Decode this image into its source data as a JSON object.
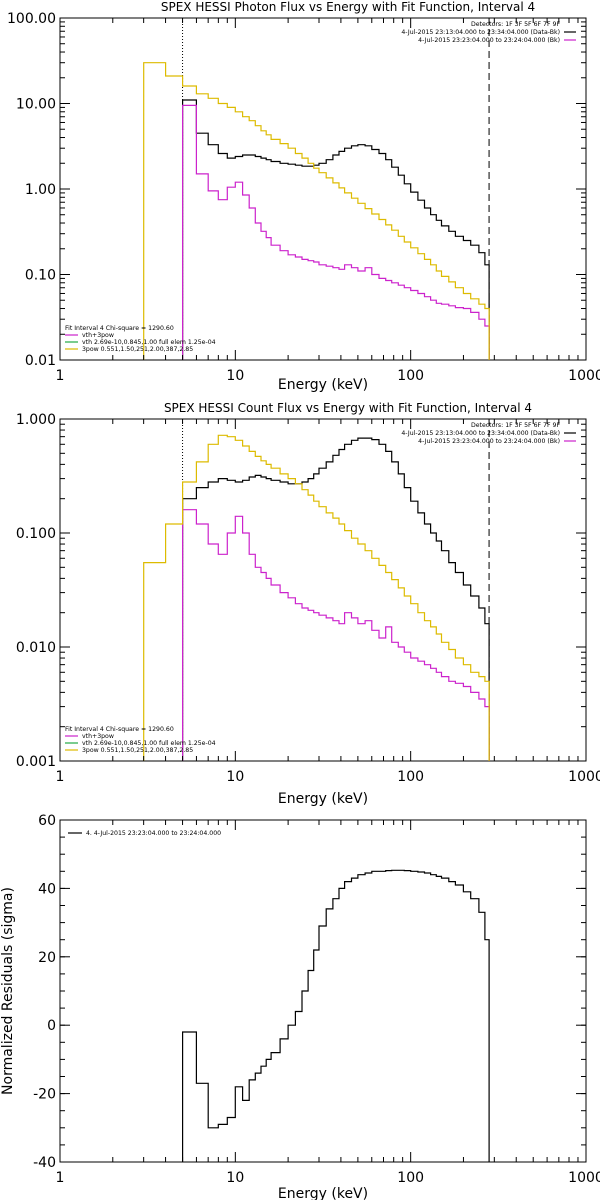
{
  "chart_data": [
    {
      "type": "line",
      "title": "SPEX HESSI Photon Flux vs Energy with Fit Function, Interval 4",
      "xlabel": "Energy (keV)",
      "ylabel": "",
      "xscale": "log",
      "yscale": "log",
      "xlim": [
        1,
        1000
      ],
      "ylim": [
        0.01,
        100
      ],
      "xtick_labels": [
        "1",
        "10",
        "100",
        "1000"
      ],
      "ytick_labels": [
        "0.01",
        "0.10",
        "1.00",
        "10.00",
        "100.00"
      ],
      "grid": false,
      "legend_top": [
        "Detectors: 1F 3F 5F 6F 7F 9F",
        "4-Jul-2015 23:13:04.000 to 23:34:04.000 (Data-Bk)",
        "4-Jul-2015 23:23:04.000 to 23:24:04.000 (Bk)"
      ],
      "legend_bottom": [
        "Fit Interval 4    Chi-square = 1290.60",
        "vth+3pow",
        "vth 2.69e-10,0.845,1.00  full elem 1.25e-04",
        "3pow 0.551,1.50,251,2.00,387,2.85"
      ],
      "vlines": [
        {
          "x": 5.0,
          "style": "dotted"
        },
        {
          "x": 280,
          "style": "dashed"
        }
      ],
      "series": [
        {
          "name": "Data-Bk",
          "color": "#000000",
          "x": [
            5.0,
            6,
            7,
            8,
            9,
            10,
            11,
            12,
            13,
            14,
            15,
            16,
            18,
            20,
            22,
            24,
            26,
            28,
            30,
            33,
            36,
            39,
            42,
            46,
            50,
            55,
            60,
            66,
            72,
            78,
            85,
            92,
            100,
            110,
            120,
            130,
            140,
            150,
            165,
            180,
            200,
            220,
            245,
            265,
            280
          ],
          "y": [
            11.0,
            4.5,
            3.3,
            2.6,
            2.3,
            2.4,
            2.5,
            2.5,
            2.4,
            2.3,
            2.2,
            2.1,
            2.0,
            1.95,
            1.9,
            1.85,
            1.85,
            1.9,
            2.0,
            2.2,
            2.5,
            2.75,
            3.0,
            3.2,
            3.3,
            3.2,
            2.9,
            2.6,
            2.2,
            1.8,
            1.45,
            1.15,
            0.92,
            0.74,
            0.6,
            0.5,
            0.43,
            0.37,
            0.32,
            0.28,
            0.25,
            0.22,
            0.18,
            0.13,
            0.13
          ]
        },
        {
          "name": "Bk",
          "color": "#cc22cc",
          "x": [
            5.0,
            6,
            7,
            8,
            9,
            10,
            11,
            12,
            13,
            14,
            15,
            16,
            18,
            20,
            22,
            24,
            26,
            28,
            30,
            33,
            36,
            39,
            42,
            46,
            50,
            55,
            60,
            66,
            72,
            78,
            85,
            92,
            100,
            110,
            120,
            130,
            140,
            150,
            165,
            180,
            200,
            220,
            245,
            265,
            280
          ],
          "y": [
            9.5,
            1.5,
            0.95,
            0.75,
            1.05,
            1.2,
            0.85,
            0.6,
            0.4,
            0.32,
            0.27,
            0.22,
            0.19,
            0.17,
            0.16,
            0.15,
            0.145,
            0.14,
            0.13,
            0.125,
            0.12,
            0.115,
            0.13,
            0.12,
            0.11,
            0.12,
            0.1,
            0.09,
            0.085,
            0.08,
            0.075,
            0.07,
            0.065,
            0.06,
            0.055,
            0.05,
            0.046,
            0.045,
            0.043,
            0.041,
            0.04,
            0.036,
            0.03,
            0.025,
            0.022
          ]
        },
        {
          "name": "Fit",
          "color": "#ddbb00",
          "x": [
            3.0,
            4.0,
            5.0,
            6,
            7,
            8,
            9,
            10,
            11,
            12,
            13,
            14,
            15,
            16,
            18,
            20,
            22,
            24,
            26,
            28,
            30,
            33,
            36,
            39,
            42,
            46,
            50,
            55,
            60,
            66,
            72,
            78,
            85,
            92,
            100,
            110,
            120,
            130,
            140,
            150,
            165,
            180,
            200,
            220,
            245,
            265,
            280
          ],
          "y": [
            30,
            21,
            16,
            13,
            11.5,
            10,
            9,
            8,
            7,
            6.3,
            5.5,
            4.8,
            4.3,
            3.8,
            3.4,
            3.0,
            2.6,
            2.3,
            2.0,
            1.75,
            1.55,
            1.35,
            1.18,
            1.03,
            0.9,
            0.78,
            0.68,
            0.59,
            0.51,
            0.44,
            0.38,
            0.33,
            0.28,
            0.24,
            0.205,
            0.175,
            0.15,
            0.13,
            0.11,
            0.095,
            0.082,
            0.07,
            0.06,
            0.052,
            0.045,
            0.04,
            0.04
          ]
        }
      ]
    },
    {
      "type": "line",
      "title": "SPEX HESSI Count Flux vs Energy with Fit Function, Interval 4",
      "xlabel": "Energy (keV)",
      "ylabel": "",
      "xscale": "log",
      "yscale": "log",
      "xlim": [
        1,
        1000
      ],
      "ylim": [
        0.001,
        1
      ],
      "xtick_labels": [
        "1",
        "10",
        "100",
        "1000"
      ],
      "ytick_labels": [
        "0.001",
        "0.010",
        "0.100",
        "1.000"
      ],
      "grid": false,
      "legend_top": [
        "Detectors: 1F 3F 5F 6F 7F 9F",
        "4-Jul-2015 23:13:04.000 to 23:34:04.000 (Data-Bk)",
        "4-Jul-2015 23:23:04.000 to 23:24:04.000 (Bk)"
      ],
      "legend_bottom": [
        "Fit Interval 4    Chi-square = 1290.60",
        "vth+3pow",
        "vth 2.69e-10,0.845,1.00  full elem 1.25e-04",
        "3pow 0.551,1.50,251,2.00,387,2.85"
      ],
      "vlines": [
        {
          "x": 5.0,
          "style": "dotted"
        },
        {
          "x": 280,
          "style": "dashed"
        }
      ],
      "series": [
        {
          "name": "Data-Bk",
          "color": "#000000",
          "x": [
            5.0,
            6,
            7,
            8,
            9,
            10,
            11,
            12,
            13,
            14,
            15,
            16,
            18,
            20,
            22,
            24,
            26,
            28,
            30,
            33,
            36,
            39,
            42,
            46,
            50,
            55,
            60,
            66,
            72,
            78,
            85,
            92,
            100,
            110,
            120,
            130,
            140,
            150,
            165,
            180,
            200,
            220,
            245,
            265,
            280
          ],
          "y": [
            0.2,
            0.25,
            0.28,
            0.3,
            0.29,
            0.28,
            0.29,
            0.31,
            0.32,
            0.31,
            0.3,
            0.29,
            0.28,
            0.27,
            0.27,
            0.28,
            0.3,
            0.33,
            0.37,
            0.42,
            0.48,
            0.54,
            0.6,
            0.65,
            0.68,
            0.68,
            0.66,
            0.6,
            0.52,
            0.42,
            0.33,
            0.25,
            0.19,
            0.15,
            0.12,
            0.1,
            0.085,
            0.07,
            0.055,
            0.045,
            0.035,
            0.028,
            0.022,
            0.016,
            0.016
          ]
        },
        {
          "name": "Bk",
          "color": "#cc22cc",
          "x": [
            5.0,
            6,
            7,
            8,
            9,
            10,
            11,
            12,
            13,
            14,
            15,
            16,
            18,
            20,
            22,
            24,
            26,
            28,
            30,
            33,
            36,
            39,
            42,
            46,
            50,
            55,
            60,
            66,
            72,
            78,
            85,
            92,
            100,
            110,
            120,
            130,
            140,
            150,
            165,
            180,
            200,
            220,
            245,
            265,
            280
          ],
          "y": [
            0.16,
            0.12,
            0.08,
            0.065,
            0.1,
            0.14,
            0.1,
            0.065,
            0.05,
            0.045,
            0.04,
            0.035,
            0.03,
            0.027,
            0.024,
            0.022,
            0.021,
            0.02,
            0.019,
            0.018,
            0.017,
            0.016,
            0.02,
            0.018,
            0.016,
            0.017,
            0.014,
            0.012,
            0.015,
            0.011,
            0.01,
            0.009,
            0.008,
            0.0075,
            0.007,
            0.0065,
            0.006,
            0.0055,
            0.005,
            0.0048,
            0.0045,
            0.004,
            0.0035,
            0.003,
            0.0028
          ]
        },
        {
          "name": "Fit",
          "color": "#ddbb00",
          "x": [
            3.0,
            4.0,
            5.0,
            6,
            7,
            8,
            9,
            10,
            11,
            12,
            13,
            14,
            15,
            16,
            18,
            20,
            22,
            24,
            26,
            28,
            30,
            33,
            36,
            39,
            42,
            46,
            50,
            55,
            60,
            66,
            72,
            78,
            85,
            92,
            100,
            110,
            120,
            130,
            140,
            150,
            165,
            180,
            200,
            220,
            245,
            265,
            280
          ],
          "y": [
            0.055,
            0.12,
            0.28,
            0.42,
            0.6,
            0.72,
            0.7,
            0.65,
            0.58,
            0.52,
            0.47,
            0.43,
            0.4,
            0.37,
            0.33,
            0.3,
            0.27,
            0.24,
            0.215,
            0.19,
            0.17,
            0.15,
            0.135,
            0.12,
            0.105,
            0.09,
            0.08,
            0.07,
            0.06,
            0.052,
            0.045,
            0.039,
            0.033,
            0.028,
            0.024,
            0.02,
            0.017,
            0.015,
            0.013,
            0.011,
            0.0095,
            0.008,
            0.007,
            0.006,
            0.0055,
            0.005,
            0.005
          ]
        }
      ]
    },
    {
      "type": "line",
      "title": "",
      "xlabel": "Energy (keV)",
      "ylabel": "Normalized Residuals (sigma)",
      "xscale": "log",
      "yscale": "linear",
      "xlim": [
        1,
        1000
      ],
      "ylim": [
        -40,
        60
      ],
      "xtick_labels": [
        "1",
        "10",
        "100",
        "1000"
      ],
      "ytick_labels": [
        "-40",
        "-20",
        "0",
        "20",
        "40",
        "60"
      ],
      "grid": false,
      "legend": [
        "4.  4-Jul-2015 23:23:04.000 to 23:24:04.000"
      ],
      "series": [
        {
          "name": "4.  4-Jul-2015 23:23:04.000 to 23:24:04.000",
          "color": "#000000",
          "x": [
            5.0,
            6,
            7,
            8,
            9,
            10,
            11,
            12,
            13,
            14,
            15,
            16,
            18,
            20,
            22,
            24,
            26,
            28,
            30,
            33,
            36,
            39,
            42,
            46,
            50,
            55,
            60,
            66,
            72,
            78,
            85,
            92,
            100,
            110,
            120,
            130,
            140,
            150,
            165,
            180,
            200,
            220,
            245,
            265,
            280
          ],
          "y": [
            -2,
            -17,
            -30,
            -29,
            -27,
            -18,
            -22,
            -16,
            -14,
            -12,
            -10,
            -8,
            -4,
            0,
            4,
            10,
            16,
            22,
            29,
            34,
            37,
            40,
            42,
            43,
            44,
            44.5,
            45,
            45,
            45.2,
            45.3,
            45.3,
            45.2,
            45,
            44.8,
            44.5,
            44,
            43.5,
            43,
            42,
            41,
            39,
            37,
            33,
            25,
            25
          ]
        }
      ]
    }
  ]
}
